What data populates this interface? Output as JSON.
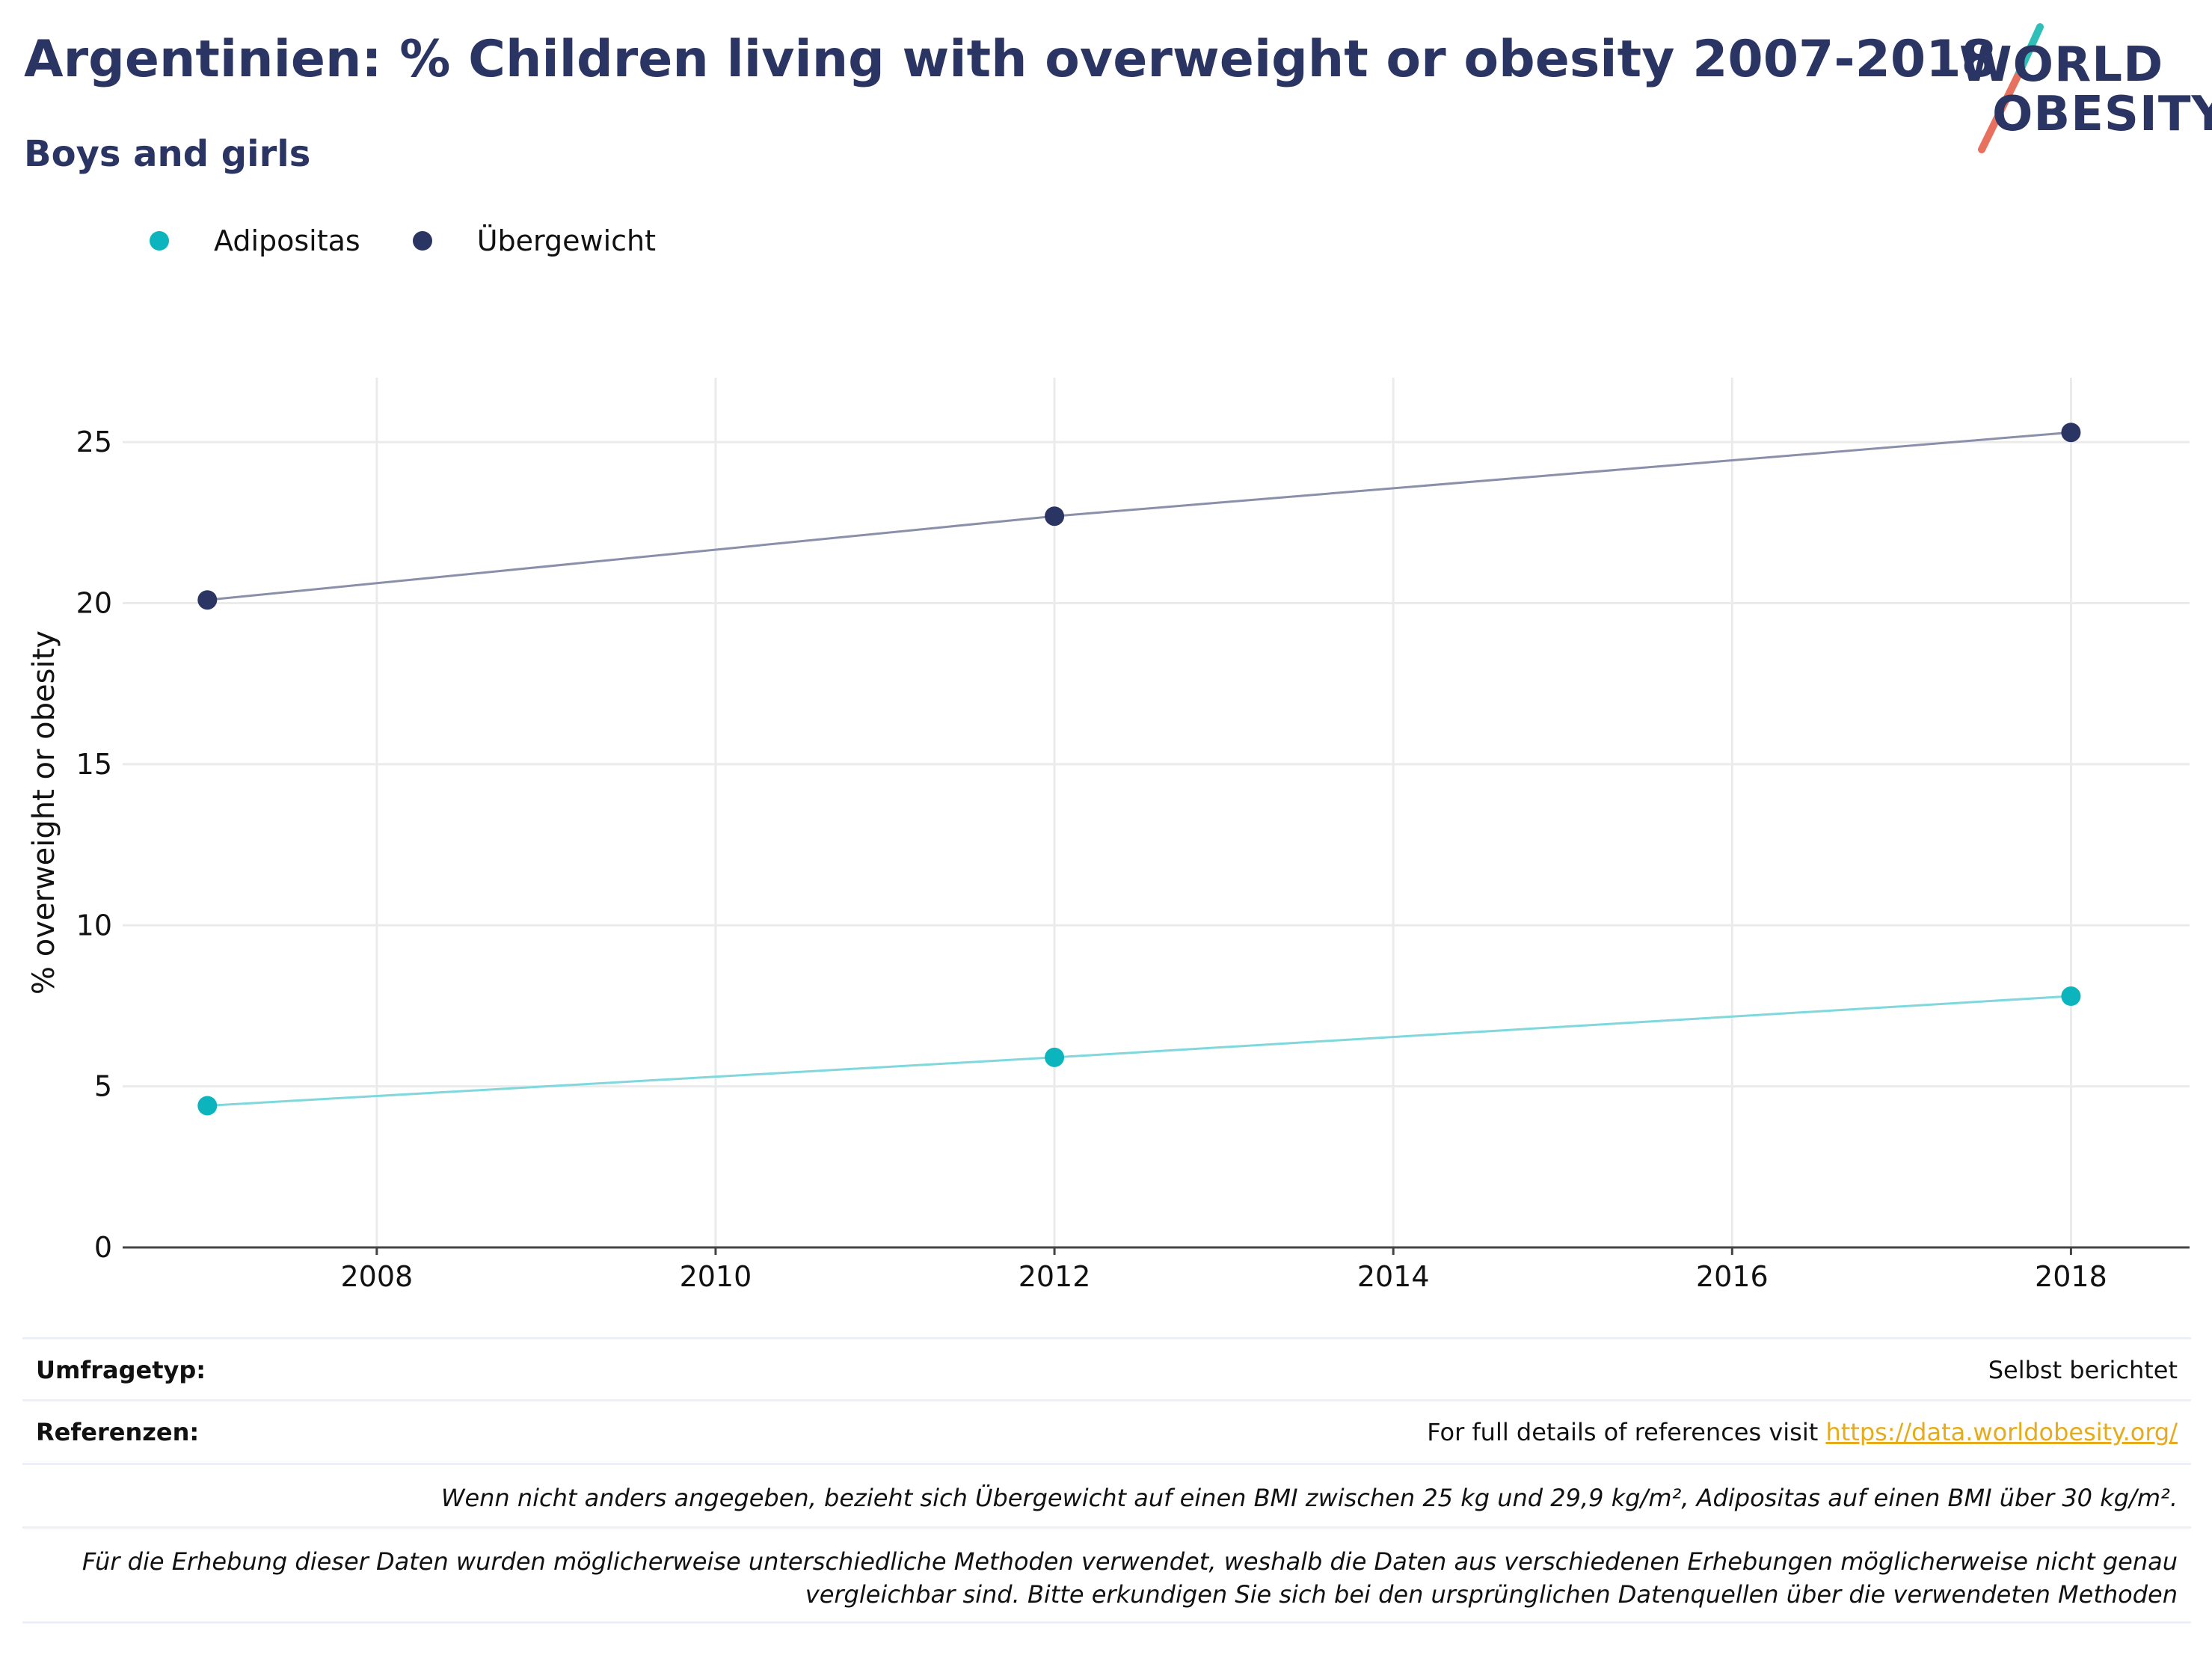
{
  "header": {
    "title": "Argentinien: % Children living with overweight or obesity 2007-2018",
    "subtitle": "Boys and girls"
  },
  "logo": {
    "line1": "WORLD",
    "line2": "OBESITY"
  },
  "legend": [
    {
      "label": "Adipositas",
      "color": "#0cb4bd"
    },
    {
      "label": "Übergewicht",
      "color": "#2b3563"
    }
  ],
  "chart_data": {
    "type": "line",
    "ylabel": "% overweight or obesity",
    "xlabel": "",
    "xlim": [
      2006.5,
      2018.7
    ],
    "ylim": [
      0,
      27
    ],
    "x_ticks": [
      2008,
      2010,
      2012,
      2014,
      2016,
      2018
    ],
    "y_ticks": [
      0,
      5,
      10,
      15,
      20,
      25
    ],
    "grid": true,
    "legend_position": "top-left",
    "series": [
      {
        "name": "Adipositas",
        "color": "#0cb4bd",
        "line_color": "#7fd8dc",
        "x": [
          2007,
          2012,
          2018
        ],
        "y": [
          4.4,
          5.9,
          7.8
        ]
      },
      {
        "name": "Übergewicht",
        "color": "#2b3563",
        "line_color": "#8a90aa",
        "x": [
          2007,
          2012,
          2018
        ],
        "y": [
          20.1,
          22.7,
          25.3
        ]
      }
    ]
  },
  "footer": {
    "survey_label": "Umfragetyp:",
    "survey_value": "Selbst berichtet",
    "refs_label": "Referenzen:",
    "refs_text": "For full details of references visit ",
    "refs_link": "https://data.worldobesity.org/",
    "note1": "Wenn nicht anders angegeben, bezieht sich Übergewicht auf einen BMI zwischen 25 kg und 29,9 kg/m², Adipositas auf einen BMI über 30 kg/m².",
    "note2_line1": "Für die Erhebung dieser Daten wurden möglicherweise unterschiedliche Methoden verwendet, weshalb die Daten aus verschiedenen Erhebungen möglicherweise nicht genau",
    "note2_line2": "vergleichbar sind. Bitte erkundigen Sie sich bei den ursprünglichen Datenquellen über die verwendeten Methoden"
  }
}
